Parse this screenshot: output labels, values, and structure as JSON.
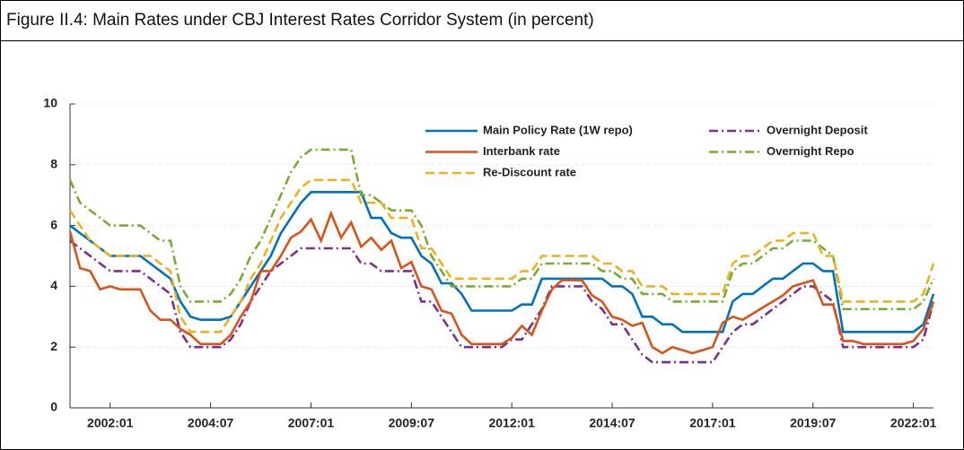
{
  "chart_data": {
    "type": "line",
    "title": "Figure II.4: Main Rates under CBJ Interest Rates Corridor System (in percent)",
    "x": [
      "2001:01",
      "2001:04",
      "2001:07",
      "2001:10",
      "2002:01",
      "2002:04",
      "2002:07",
      "2002:10",
      "2003:01",
      "2003:04",
      "2003:07",
      "2003:10",
      "2004:01",
      "2004:04",
      "2004:07",
      "2004:10",
      "2005:01",
      "2005:04",
      "2005:07",
      "2005:10",
      "2006:01",
      "2006:04",
      "2006:07",
      "2006:10",
      "2007:01",
      "2007:04",
      "2007:07",
      "2007:10",
      "2008:01",
      "2008:04",
      "2008:07",
      "2008:10",
      "2009:01",
      "2009:04",
      "2009:07",
      "2009:10",
      "2010:01",
      "2010:04",
      "2010:07",
      "2010:10",
      "2011:01",
      "2011:04",
      "2011:07",
      "2011:10",
      "2012:01",
      "2012:04",
      "2012:07",
      "2012:10",
      "2013:01",
      "2013:04",
      "2013:07",
      "2013:10",
      "2014:01",
      "2014:04",
      "2014:07",
      "2014:10",
      "2015:01",
      "2015:04",
      "2015:07",
      "2015:10",
      "2016:01",
      "2016:04",
      "2016:07",
      "2016:10",
      "2017:01",
      "2017:04",
      "2017:07",
      "2017:10",
      "2018:01",
      "2018:04",
      "2018:07",
      "2018:10",
      "2019:01",
      "2019:04",
      "2019:07",
      "2019:10",
      "2020:01",
      "2020:04",
      "2020:07",
      "2020:10",
      "2021:01",
      "2021:04",
      "2021:07",
      "2021:10",
      "2022:01",
      "2022:04",
      "2022:07"
    ],
    "series": [
      {
        "name": "Main Policy Rate (1W repo)",
        "color": "#0072BD",
        "style": "solid",
        "values": [
          6.0,
          5.75,
          5.5,
          5.25,
          5.0,
          5.0,
          5.0,
          5.0,
          4.75,
          4.5,
          4.25,
          3.5,
          3.0,
          2.9,
          2.9,
          2.9,
          3.0,
          3.5,
          4.0,
          4.5,
          5.0,
          5.75,
          6.25,
          6.75,
          7.1,
          7.1,
          7.1,
          7.1,
          7.1,
          7.1,
          6.25,
          6.25,
          5.75,
          5.6,
          5.6,
          5.0,
          4.75,
          4.1,
          4.1,
          3.75,
          3.2,
          3.2,
          3.2,
          3.2,
          3.2,
          3.4,
          3.4,
          4.25,
          4.25,
          4.25,
          4.25,
          4.25,
          4.25,
          4.25,
          4.0,
          4.0,
          3.75,
          3.0,
          3.0,
          2.75,
          2.75,
          2.5,
          2.5,
          2.5,
          2.5,
          2.5,
          3.5,
          3.75,
          3.75,
          4.0,
          4.25,
          4.25,
          4.5,
          4.75,
          4.75,
          4.5,
          4.5,
          2.5,
          2.5,
          2.5,
          2.5,
          2.5,
          2.5,
          2.5,
          2.5,
          2.75,
          3.75
        ]
      },
      {
        "name": "Overnight Deposit",
        "color": "#7E2F8E",
        "style": "dashdot",
        "values": [
          5.5,
          5.25,
          5.0,
          4.75,
          4.5,
          4.5,
          4.5,
          4.5,
          4.25,
          4.0,
          3.75,
          2.5,
          2.0,
          2.0,
          2.0,
          2.0,
          2.25,
          2.75,
          3.5,
          4.0,
          4.5,
          4.75,
          5.0,
          5.25,
          5.25,
          5.25,
          5.25,
          5.25,
          5.25,
          4.75,
          4.75,
          4.5,
          4.5,
          4.5,
          4.5,
          3.5,
          3.5,
          3.0,
          2.5,
          2.0,
          2.0,
          2.0,
          2.0,
          2.0,
          2.25,
          2.25,
          2.75,
          3.25,
          4.0,
          4.0,
          4.0,
          4.0,
          3.5,
          3.25,
          2.75,
          2.75,
          2.25,
          1.75,
          1.5,
          1.5,
          1.5,
          1.5,
          1.5,
          1.5,
          1.5,
          2.0,
          2.5,
          2.75,
          2.75,
          3.0,
          3.25,
          3.5,
          3.75,
          4.0,
          4.0,
          3.75,
          3.5,
          2.0,
          2.0,
          2.0,
          2.0,
          2.0,
          2.0,
          2.0,
          2.0,
          2.25,
          3.5
        ]
      },
      {
        "name": "Interbank rate",
        "color": "#D95319",
        "style": "solid",
        "values": [
          5.8,
          4.6,
          4.5,
          3.9,
          4.0,
          3.9,
          3.9,
          3.9,
          3.2,
          2.9,
          2.9,
          2.6,
          2.4,
          2.1,
          2.1,
          2.1,
          2.4,
          3.0,
          3.5,
          4.5,
          4.5,
          5.0,
          5.6,
          5.8,
          6.2,
          5.5,
          6.4,
          5.6,
          6.1,
          5.3,
          5.6,
          5.2,
          5.5,
          4.6,
          4.8,
          4.0,
          3.9,
          3.2,
          3.1,
          2.4,
          2.1,
          2.1,
          2.1,
          2.1,
          2.3,
          2.7,
          2.4,
          3.2,
          3.9,
          4.2,
          4.2,
          4.2,
          3.7,
          3.5,
          3.0,
          2.9,
          2.7,
          2.8,
          2.0,
          1.8,
          2.0,
          1.9,
          1.8,
          1.9,
          2.0,
          2.8,
          3.0,
          2.9,
          3.1,
          3.3,
          3.5,
          3.7,
          4.0,
          4.1,
          4.2,
          3.4,
          3.4,
          2.2,
          2.2,
          2.1,
          2.1,
          2.1,
          2.1,
          2.1,
          2.2,
          2.6,
          3.5
        ]
      },
      {
        "name": "Overnight Repo",
        "color": "#77AC30",
        "style": "dashdot",
        "values": [
          7.5,
          6.75,
          6.5,
          6.25,
          6.0,
          6.0,
          6.0,
          6.0,
          5.75,
          5.5,
          5.5,
          4.0,
          3.5,
          3.5,
          3.5,
          3.5,
          3.75,
          4.25,
          5.0,
          5.5,
          6.25,
          7.0,
          7.75,
          8.25,
          8.5,
          8.5,
          8.5,
          8.5,
          8.5,
          7.0,
          7.0,
          6.75,
          6.5,
          6.5,
          6.5,
          6.0,
          5.0,
          4.5,
          4.0,
          4.0,
          4.0,
          4.0,
          4.0,
          4.0,
          4.0,
          4.25,
          4.25,
          4.75,
          4.75,
          4.75,
          4.75,
          4.75,
          4.75,
          4.5,
          4.5,
          4.25,
          4.25,
          3.75,
          3.75,
          3.75,
          3.5,
          3.5,
          3.5,
          3.5,
          3.5,
          3.5,
          4.5,
          4.75,
          4.75,
          5.0,
          5.25,
          5.25,
          5.5,
          5.5,
          5.5,
          5.25,
          5.0,
          3.25,
          3.25,
          3.25,
          3.25,
          3.25,
          3.25,
          3.25,
          3.25,
          3.5,
          4.25
        ]
      },
      {
        "name": "Re-Discount rate",
        "color": "#EDB120",
        "style": "dash",
        "values": [
          6.5,
          6.0,
          5.5,
          5.25,
          5.0,
          5.0,
          5.0,
          5.0,
          5.0,
          4.75,
          4.5,
          3.0,
          2.5,
          2.5,
          2.5,
          2.5,
          3.0,
          3.5,
          4.25,
          4.75,
          5.5,
          6.25,
          6.75,
          7.25,
          7.5,
          7.5,
          7.5,
          7.5,
          7.5,
          6.75,
          6.75,
          6.75,
          6.25,
          6.25,
          6.25,
          5.25,
          5.25,
          4.75,
          4.25,
          4.25,
          4.25,
          4.25,
          4.25,
          4.25,
          4.25,
          4.5,
          4.5,
          5.0,
          5.0,
          5.0,
          5.0,
          5.0,
          5.0,
          4.75,
          4.75,
          4.5,
          4.5,
          4.0,
          4.0,
          4.0,
          3.75,
          3.75,
          3.75,
          3.75,
          3.75,
          3.75,
          4.75,
          5.0,
          5.0,
          5.25,
          5.5,
          5.5,
          5.75,
          5.75,
          5.75,
          5.0,
          5.0,
          3.5,
          3.5,
          3.5,
          3.5,
          3.5,
          3.5,
          3.5,
          3.5,
          3.75,
          4.75
        ]
      }
    ],
    "xlim": [
      "2001:01",
      "2022:07"
    ],
    "xticks": [
      "2002:01",
      "2004:07",
      "2007:01",
      "2009:07",
      "2012:01",
      "2014:07",
      "2017:01",
      "2019:07",
      "2022:01"
    ],
    "ylim": [
      0,
      10
    ],
    "yticks": [
      0,
      2,
      4,
      6,
      8,
      10
    ],
    "grid": true
  }
}
